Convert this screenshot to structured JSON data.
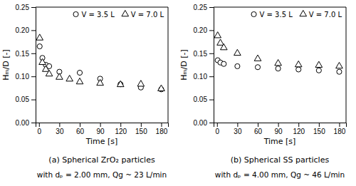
{
  "chart_data": [
    {
      "type": "scatter",
      "title": "(a) Spherical ZrO₂ particles",
      "subtitle": "with dₚ = 2.00 mm, Qg ~ 23 L/min",
      "xlabel": "Time [s]",
      "ylabel": "Hₘ/D [-]",
      "xlim": [
        -5,
        190
      ],
      "xticks": [
        0,
        30,
        60,
        90,
        120,
        150,
        180
      ],
      "ylim": [
        0.0,
        0.25
      ],
      "yticks": [
        {
          "value": 0.0,
          "label": "0.00"
        },
        {
          "value": 0.05,
          "label": "0.05"
        },
        {
          "value": 0.1,
          "label": "0.10"
        },
        {
          "value": 0.15,
          "label": "0.15"
        },
        {
          "value": 0.2,
          "label": "0.20"
        },
        {
          "value": 0.25,
          "label": "0.25"
        }
      ],
      "grid": false,
      "legend": "upper right",
      "series": [
        {
          "name": "V = 3.5 L",
          "marker": "circle",
          "color": "black",
          "x": [
            1,
            5,
            10,
            15,
            30,
            60,
            90,
            120,
            150,
            180
          ],
          "values": [
            0.165,
            0.14,
            0.125,
            0.122,
            0.11,
            0.108,
            0.095,
            0.083,
            0.076,
            0.072
          ]
        },
        {
          "name": "V = 7.0 L",
          "marker": "triangle",
          "color": "black",
          "x": [
            1,
            5,
            10,
            15,
            30,
            45,
            60,
            90,
            120,
            150,
            180
          ],
          "values": [
            0.183,
            0.13,
            0.115,
            0.105,
            0.098,
            0.094,
            0.088,
            0.085,
            0.082,
            0.083,
            0.073
          ]
        }
      ]
    },
    {
      "type": "scatter",
      "title": "(b) Spherical SS particles",
      "subtitle": "with dₚ = 4.00 mm, Qg ~ 46 L/min",
      "xlabel": "Time [s]",
      "ylabel": "Hₘ/D [-]",
      "xlim": [
        -5,
        190
      ],
      "xticks": [
        0,
        30,
        60,
        90,
        120,
        150,
        180
      ],
      "ylim": [
        0.0,
        0.25
      ],
      "yticks": [
        {
          "value": 0.0,
          "label": "0.00"
        },
        {
          "value": 0.05,
          "label": "0.05"
        },
        {
          "value": 0.1,
          "label": "0.10"
        },
        {
          "value": 0.15,
          "label": "0.15"
        },
        {
          "value": 0.2,
          "label": "0.20"
        },
        {
          "value": 0.25,
          "label": "0.25"
        }
      ],
      "grid": false,
      "legend": "upper right",
      "series": [
        {
          "name": "V = 3.5 L",
          "marker": "circle",
          "color": "black",
          "x": [
            1,
            5,
            10,
            30,
            60,
            90,
            120,
            150,
            180
          ],
          "values": [
            0.135,
            0.13,
            0.127,
            0.122,
            0.12,
            0.117,
            0.115,
            0.113,
            0.11
          ]
        },
        {
          "name": "V = 7.0 L",
          "marker": "triangle",
          "color": "black",
          "x": [
            1,
            5,
            10,
            30,
            60,
            90,
            120,
            150,
            180
          ],
          "values": [
            0.188,
            0.172,
            0.162,
            0.15,
            0.138,
            0.128,
            0.125,
            0.124,
            0.122
          ]
        }
      ]
    }
  ]
}
